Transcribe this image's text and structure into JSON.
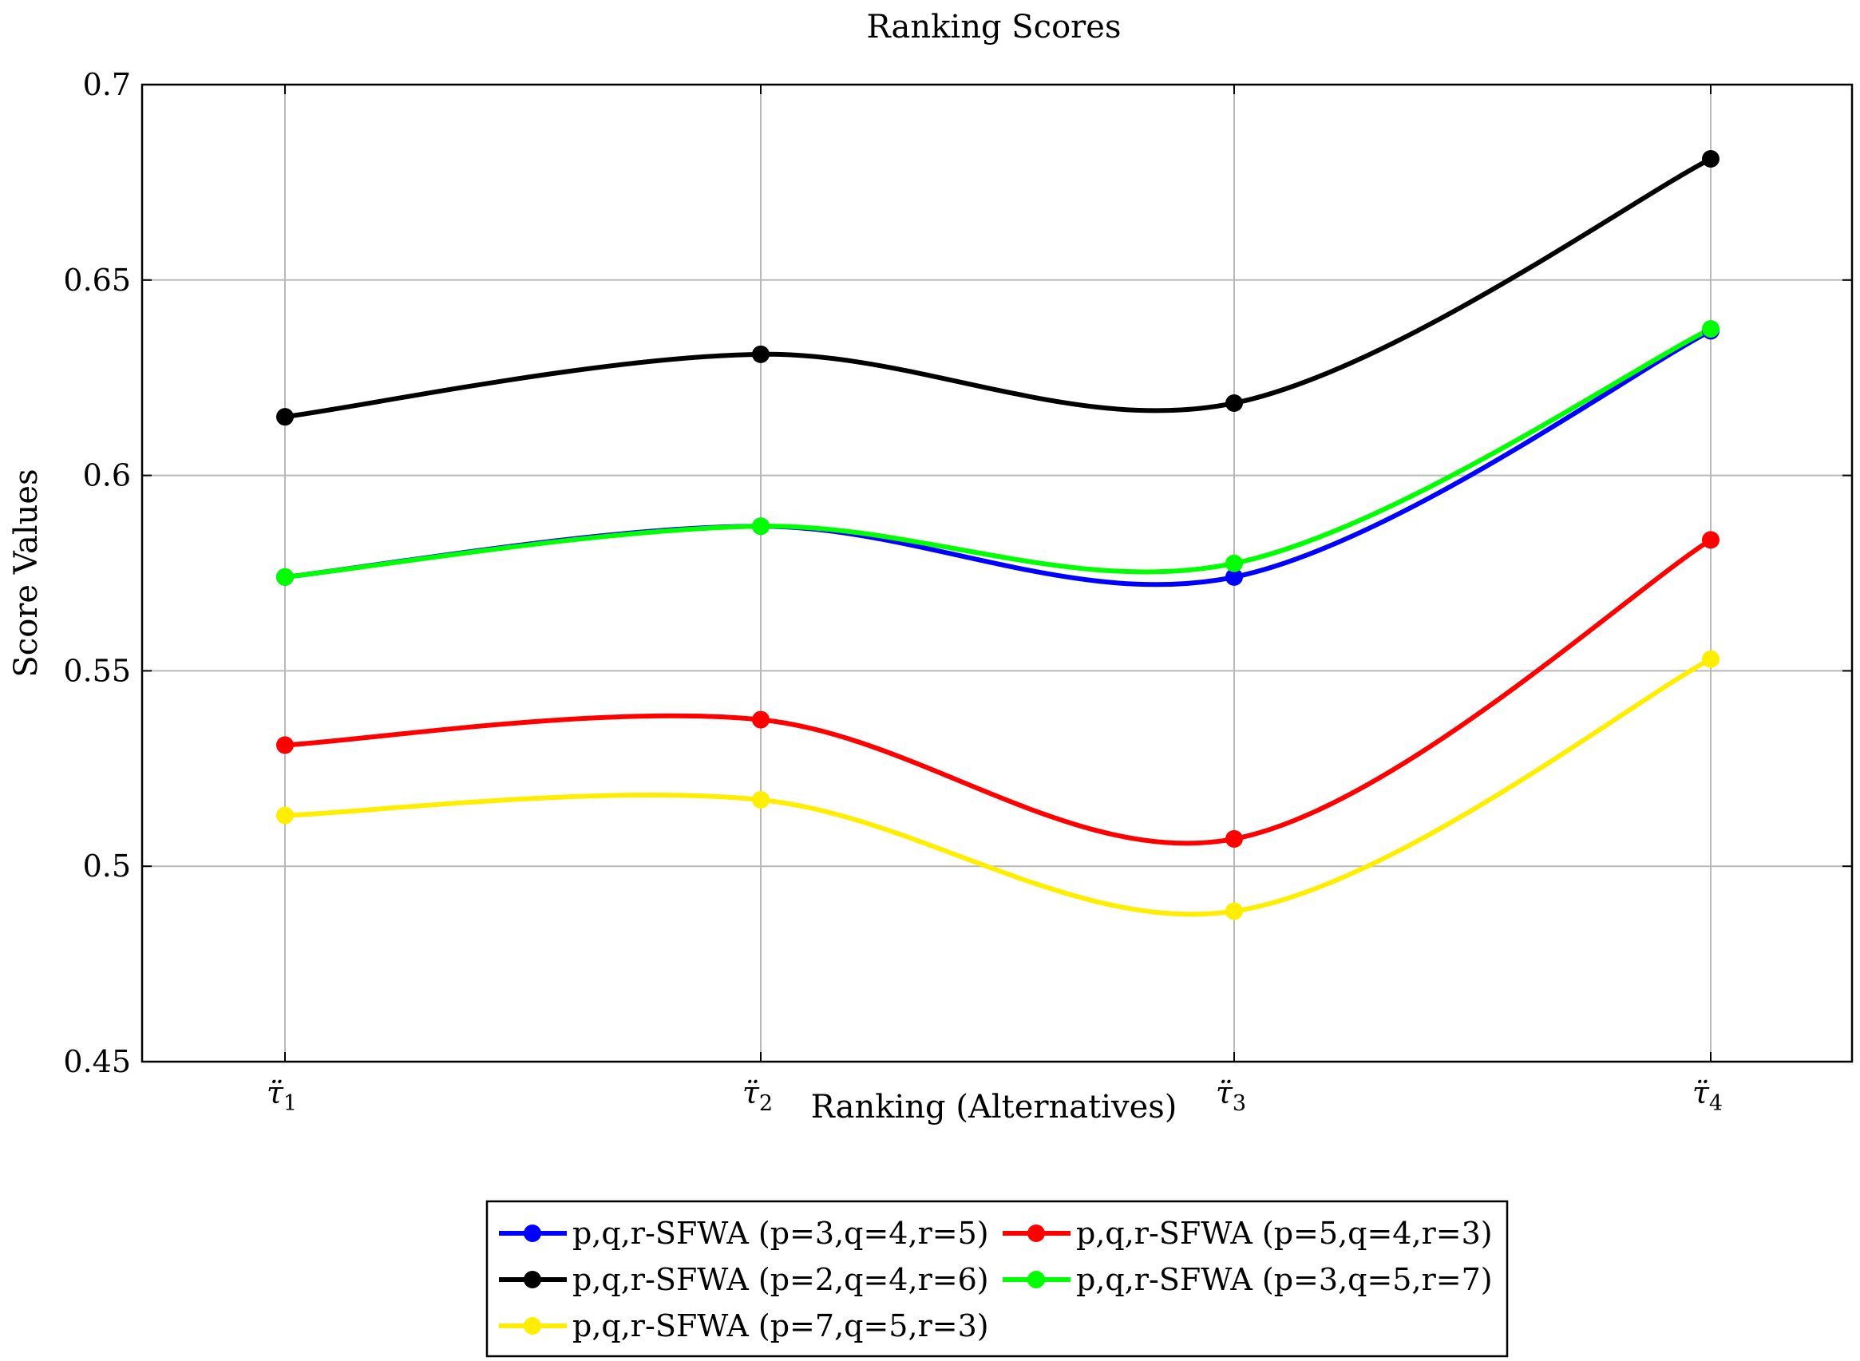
{
  "chart_data": {
    "type": "line",
    "title": "Ranking Scores",
    "xlabel": "Ranking (Alternatives)",
    "ylabel": "Score Values",
    "ylim": [
      0.45,
      0.7
    ],
    "yticks": [
      "0.45",
      "0.5",
      "0.55",
      "0.6",
      "0.65",
      "0.7"
    ],
    "ytick_values": [
      0.45,
      0.5,
      0.55,
      0.6,
      0.65,
      0.7
    ],
    "categories": [
      {
        "base": "τ̈",
        "sub": "1"
      },
      {
        "base": "τ̈",
        "sub": "2"
      },
      {
        "base": "τ̈",
        "sub": "3"
      },
      {
        "base": "τ̈",
        "sub": "4"
      }
    ],
    "grid": true,
    "smooth": true,
    "legend_position": "bottom-center",
    "series": [
      {
        "name": "p,q,r-SFWA (p=3,q=4,r=5)",
        "color": "#0000ff",
        "values": [
          0.574,
          0.587,
          0.574,
          0.637
        ]
      },
      {
        "name": "p,q,r-SFWA (p=5,q=4,r=3)",
        "color": "#ff0000",
        "values": [
          0.531,
          0.5375,
          0.507,
          0.5835
        ]
      },
      {
        "name": "p,q,r-SFWA (p=2,q=4,r=6)",
        "color": "#000000",
        "values": [
          0.615,
          0.631,
          0.6185,
          0.681
        ]
      },
      {
        "name": "p,q,r-SFWA (p=3,q=5,r=7)",
        "color": "#00ff00",
        "values": [
          0.574,
          0.587,
          0.5775,
          0.6375
        ]
      },
      {
        "name": "p,q,r-SFWA (p=7,q=5,r=3)",
        "color": "#ffee00",
        "values": [
          0.513,
          0.517,
          0.4885,
          0.553
        ]
      }
    ]
  }
}
